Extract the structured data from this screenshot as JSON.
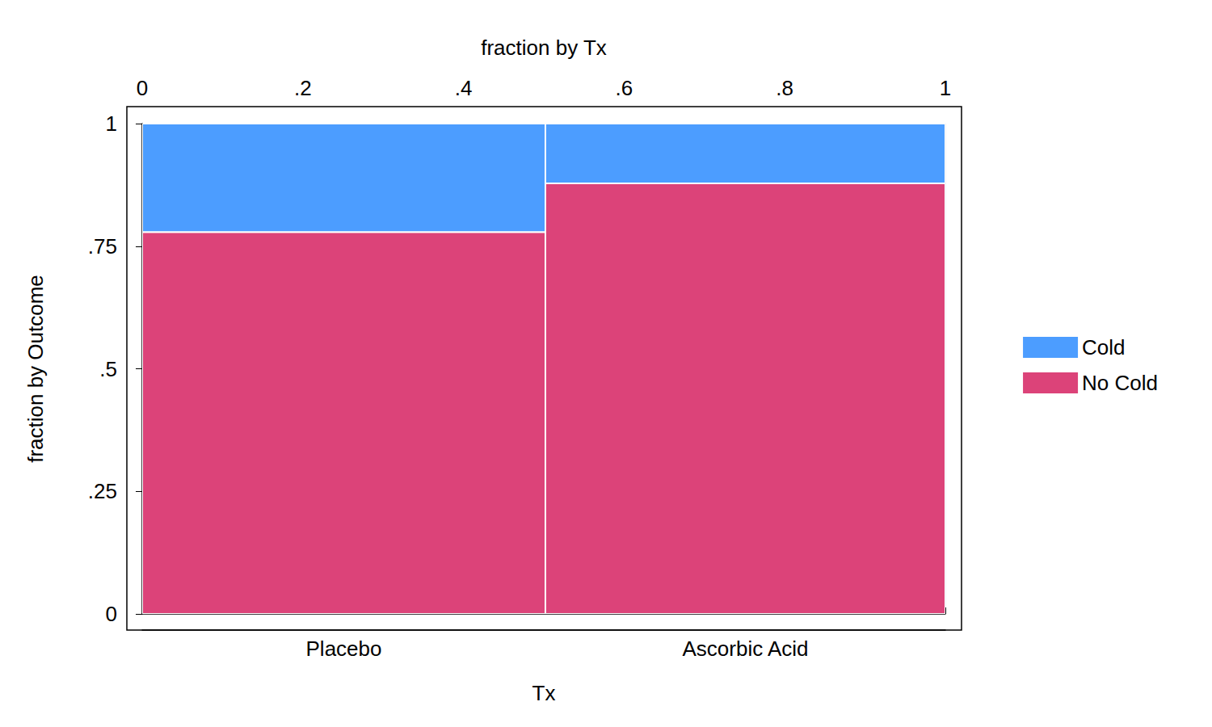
{
  "chart_data": {
    "type": "mosaic",
    "x_label_top": "fraction by Tx",
    "x_label": "Tx",
    "y_label": "fraction by Outcome",
    "categories": [
      "Placebo",
      "Ascorbic Acid"
    ],
    "widths": [
      0.502,
      0.498
    ],
    "series": [
      {
        "name": "No Cold",
        "color": "#dc4379",
        "values": [
          0.779,
          0.878
        ]
      },
      {
        "name": "Cold",
        "color": "#4c9dff",
        "values": [
          0.221,
          0.122
        ]
      }
    ],
    "xlim": [
      0,
      1
    ],
    "xticks": [
      0,
      {
        "value": 0.2,
        "label": ".2"
      },
      {
        "value": 0.4,
        "label": ".4"
      },
      {
        "value": 0.6,
        "label": ".6"
      },
      {
        "value": 0.8,
        "label": ".8"
      },
      1
    ],
    "ylim": [
      0,
      1
    ],
    "yticks": [
      0,
      {
        "value": 0.25,
        "label": ".25"
      },
      {
        "value": 0.5,
        "label": ".5"
      },
      {
        "value": 0.75,
        "label": ".75"
      },
      1
    ],
    "stacked": true,
    "grid": true,
    "legend": "right"
  }
}
